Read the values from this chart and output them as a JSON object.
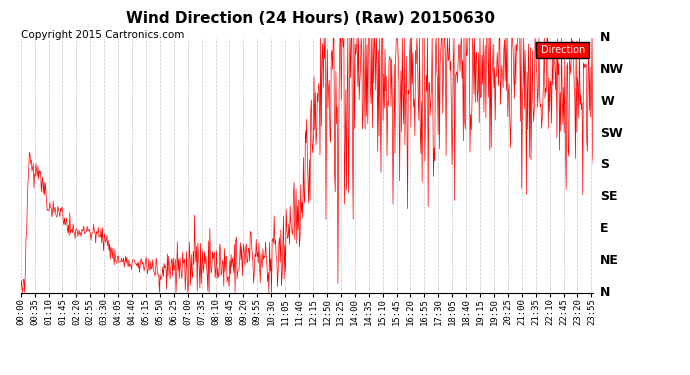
{
  "title": "Wind Direction (24 Hours) (Raw) 20150630",
  "copyright": "Copyright 2015 Cartronics.com",
  "legend_label": "Direction",
  "legend_color": "#ff0000",
  "line_color": "#ff0000",
  "bg_color": "#ffffff",
  "plot_bg": "#ffffff",
  "grid_color": "#bbbbbb",
  "ytick_labels": [
    "N",
    "NW",
    "W",
    "SW",
    "S",
    "SE",
    "E",
    "NE",
    "N"
  ],
  "ytick_values": [
    360,
    315,
    270,
    225,
    180,
    135,
    90,
    45,
    0
  ],
  "ylim": [
    0,
    360
  ],
  "title_fontsize": 11,
  "copyright_fontsize": 7.5,
  "axis_fontsize": 6.5,
  "ylabel_fontsize": 9,
  "x_tick_labels": [
    "00:00",
    "00:35",
    "01:10",
    "01:45",
    "02:20",
    "02:55",
    "03:30",
    "04:05",
    "04:40",
    "05:15",
    "05:50",
    "06:25",
    "07:00",
    "07:35",
    "08:10",
    "08:45",
    "09:20",
    "09:55",
    "10:30",
    "11:05",
    "11:40",
    "12:15",
    "12:50",
    "13:25",
    "14:00",
    "14:35",
    "15:10",
    "15:45",
    "16:20",
    "16:55",
    "17:30",
    "18:05",
    "18:40",
    "19:15",
    "19:50",
    "20:25",
    "21:00",
    "21:35",
    "22:10",
    "22:45",
    "23:20",
    "23:55"
  ]
}
